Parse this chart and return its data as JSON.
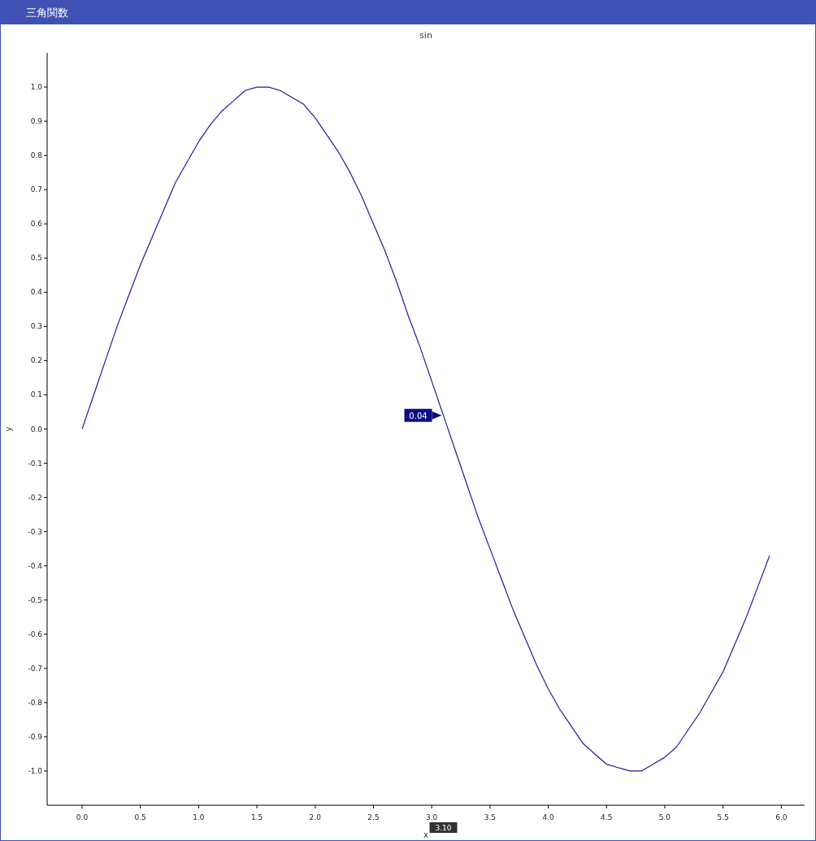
{
  "chart_data": {
    "type": "line",
    "title": "三角関数",
    "subtitle": "sin",
    "xlabel": "x",
    "ylabel": "y",
    "x": [
      0,
      0.1,
      0.2,
      0.3,
      0.4,
      0.5,
      0.6,
      0.7,
      0.8,
      0.9,
      1,
      1.1,
      1.2,
      1.3,
      1.4,
      1.5,
      1.6,
      1.7,
      1.8,
      1.9,
      2,
      2.1,
      2.2,
      2.3,
      2.4,
      2.5,
      2.6,
      2.7,
      2.8,
      2.9,
      3,
      3.1,
      3.2,
      3.3,
      3.4,
      3.5,
      3.6,
      3.7,
      3.8,
      3.9,
      4,
      4.1,
      4.2,
      4.3,
      4.4,
      4.5,
      4.6,
      4.7,
      4.8,
      4.9,
      5,
      5.1,
      5.2,
      5.3,
      5.4,
      5.5,
      5.6,
      5.7,
      5.8,
      5.9
    ],
    "series": [
      {
        "color": "#1c1c9c",
        "values": [
          0.0,
          0.1,
          0.2,
          0.3,
          0.39,
          0.48,
          0.56,
          0.64,
          0.72,
          0.78,
          0.84,
          0.89,
          0.93,
          0.96,
          0.99,
          1.0,
          1.0,
          0.99,
          0.97,
          0.95,
          0.91,
          0.86,
          0.81,
          0.75,
          0.68,
          0.6,
          0.52,
          0.43,
          0.33,
          0.24,
          0.14,
          0.04,
          -0.06,
          -0.16,
          -0.26,
          -0.35,
          -0.44,
          -0.53,
          -0.61,
          -0.69,
          -0.76,
          -0.82,
          -0.87,
          -0.92,
          -0.95,
          -0.98,
          -0.99,
          -1.0,
          -1.0,
          -0.98,
          -0.96,
          -0.93,
          -0.88,
          -0.83,
          -0.77,
          -0.71,
          -0.63,
          -0.55,
          -0.46,
          -0.37
        ]
      }
    ],
    "xlim": [
      -0.3,
      6.2
    ],
    "ylim": [
      -1.1,
      1.1
    ],
    "xticks": [
      {
        "value": 0,
        "label": "0.0"
      },
      0.5,
      {
        "value": 1,
        "label": "1.0"
      },
      1.5,
      {
        "value": 2,
        "label": "2.0"
      },
      2.5,
      {
        "value": 3,
        "label": "3.0"
      },
      3.5,
      {
        "value": 4,
        "label": "4.0"
      },
      4.5,
      {
        "value": 5,
        "label": "5.0"
      },
      5.5,
      {
        "value": 6,
        "label": "6.0"
      }
    ],
    "yticks": [
      {
        "value": -1,
        "label": "-1.0"
      },
      -0.9,
      -0.8,
      -0.7,
      -0.6,
      -0.5,
      -0.4,
      -0.3,
      -0.2,
      -0.1,
      {
        "value": 0,
        "label": "0.0"
      },
      0.1,
      0.2,
      0.3,
      0.4,
      0.5,
      0.6,
      0.7,
      0.8,
      0.9,
      {
        "value": 1,
        "label": "1.0"
      }
    ],
    "grid": false,
    "marker": "none",
    "line_style": "solid",
    "annotations": [
      {
        "text": "0.04",
        "x": 3.1,
        "y": 0.04
      },
      "3.10"
    ]
  }
}
